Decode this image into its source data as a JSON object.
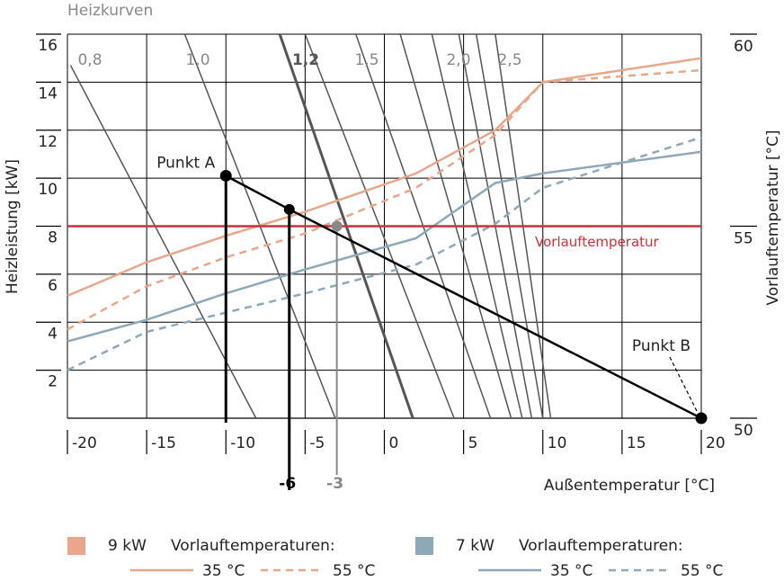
{
  "chart_data": {
    "type": "line",
    "title": "Heizkurven",
    "y_label": "Heizleistung [kW]",
    "y2_label": "Vorlauftemperatur [°C]",
    "x_label": "Außentemperatur [°C]",
    "xlim": [
      -20,
      20
    ],
    "xticks": [
      -20,
      -15,
      -10,
      -5,
      0,
      5,
      10,
      15,
      20
    ],
    "ylim": [
      0,
      16
    ],
    "yticks": [
      2,
      4,
      6,
      8,
      10,
      12,
      14,
      16
    ],
    "y2lim": [
      50,
      60
    ],
    "y2ticks": [
      50,
      55,
      60
    ],
    "grid": true,
    "curve_labels": [
      "0,8",
      "1,0",
      "1,2",
      "1,5",
      "2,0",
      "2,5"
    ],
    "heating_curves": [
      {
        "x": [
          -19.8,
          -8.1
        ],
        "values": [
          14.7,
          0
        ],
        "bold": false
      },
      {
        "x": [
          -12.6,
          -3.1
        ],
        "values": [
          16,
          0
        ],
        "bold": false
      },
      {
        "x": [
          -6.6,
          1.8
        ],
        "values": [
          16,
          0
        ],
        "bold": true
      },
      {
        "x": [
          -5.0,
          4.4
        ],
        "values": [
          16,
          0
        ],
        "bold": false
      },
      {
        "x": [
          -1.8,
          6.7
        ],
        "values": [
          16,
          0
        ],
        "bold": false
      },
      {
        "x": [
          1.0,
          8.0
        ],
        "values": [
          16,
          0
        ],
        "bold": false
      },
      {
        "x": [
          3.0,
          8.7
        ],
        "values": [
          16,
          0
        ],
        "bold": false
      },
      {
        "x": [
          4.7,
          9.3
        ],
        "values": [
          16,
          0
        ],
        "bold": false
      },
      {
        "x": [
          5.8,
          10.0
        ],
        "values": [
          16,
          0
        ],
        "bold": false
      },
      {
        "x": [
          7.0,
          10.5
        ],
        "values": [
          16,
          0
        ],
        "bold": false
      }
    ],
    "legend_groups": [
      {
        "label": "9 kW",
        "heading": "Vorlauftemperaturen:",
        "color": "#e8a68a"
      },
      {
        "label": "7 kW",
        "heading": "Vorlauftemperaturen:",
        "color": "#8fa8b8"
      }
    ],
    "series": [
      {
        "name": "35 °C",
        "group": 0,
        "dashed": false,
        "color": "#e8a68a",
        "x": [
          -20,
          -15,
          -10,
          -5,
          2,
          7,
          10,
          20
        ],
        "values": [
          5.1,
          6.5,
          7.6,
          8.6,
          10.2,
          12.0,
          14.0,
          15.0
        ]
      },
      {
        "name": "55 °C",
        "group": 0,
        "dashed": true,
        "color": "#e8a68a",
        "x": [
          -20,
          -15,
          -10,
          -5,
          2,
          7,
          10,
          20
        ],
        "values": [
          3.7,
          5.5,
          6.7,
          7.7,
          9.6,
          11.8,
          14.0,
          14.5
        ]
      },
      {
        "name": "35 °C",
        "group": 1,
        "dashed": false,
        "color": "#8fa8b8",
        "x": [
          -20,
          -15,
          -10,
          -5,
          2,
          7,
          10,
          20
        ],
        "values": [
          3.2,
          4.1,
          5.2,
          6.2,
          7.5,
          9.8,
          10.2,
          11.1
        ]
      },
      {
        "name": "55 °C",
        "group": 1,
        "dashed": true,
        "color": "#8fa8b8",
        "x": [
          -20,
          -15,
          -10,
          -5,
          2,
          7,
          10,
          20
        ],
        "values": [
          2.0,
          3.6,
          4.4,
          5.2,
          6.4,
          8.1,
          9.6,
          11.7
        ]
      }
    ],
    "reference_line": {
      "label": "Vorlauftemperatur",
      "value": 55,
      "axis": "y2",
      "color": "#c8323c"
    },
    "operating_line": {
      "x": [
        -10,
        -6,
        20
      ],
      "values": [
        10.1,
        8.7,
        0
      ]
    },
    "points": [
      {
        "label": "Punkt A",
        "x": -10,
        "y": 10.1
      },
      {
        "label": "Punkt B",
        "x": 20,
        "y": 0
      }
    ],
    "x_markers": [
      {
        "x": -6,
        "y": 8.7,
        "color": "#000000"
      },
      {
        "x": -3,
        "y": 8,
        "color": "#888888"
      }
    ]
  }
}
